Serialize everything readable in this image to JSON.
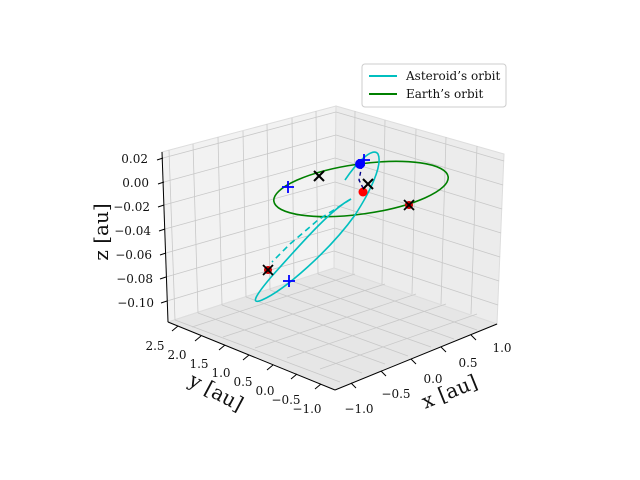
{
  "chart_data": {
    "type": "line",
    "projection": "3d",
    "xlabel": "$x$ [au]",
    "ylabel": "$y$ [au]",
    "zlabel": "$z$ [au]",
    "xlim": [
      -1.15,
      1.15
    ],
    "ylim": [
      -1.2,
      2.6
    ],
    "zlim": [
      -0.115,
      0.025
    ],
    "x_ticks": [
      "−1.0",
      "−0.5",
      "0.0",
      "0.5",
      "1.0"
    ],
    "y_ticks": [
      "−1.0",
      "−0.5",
      "0.0",
      "0.5",
      "1.0",
      "1.5",
      "2.0",
      "2.5"
    ],
    "z_ticks": [
      "0.02",
      "0.00",
      "−0.02",
      "−0.04",
      "−0.06",
      "−0.08",
      "−0.10"
    ],
    "grid": true,
    "legend_position": "top-right",
    "series": [
      {
        "name": "Asteroid’s orbit",
        "color": "#00bfbf",
        "shape": "tilted ellipse, dashed segment behind Earth orbit"
      },
      {
        "name": "Earth’s orbit",
        "color": "#008000",
        "shape": "ellipse in z = 0 plane"
      }
    ],
    "markers": [
      {
        "kind": "cross",
        "color": "#000000",
        "note": "Earth positions"
      },
      {
        "kind": "plus",
        "color": "#0000ff",
        "note": "asteroid nodes / apsides"
      },
      {
        "kind": "dot",
        "color": "#0000ff",
        "note": "asteroid position"
      },
      {
        "kind": "dot",
        "color": "#ff0000",
        "note": "Earth position"
      },
      {
        "kind": "x-on-red",
        "color": "#000000",
        "note": "ascending / descending points"
      }
    ]
  },
  "legend": {
    "asteroid": "Asteroid’s orbit",
    "earth": "Earth’s orbit"
  },
  "axes": {
    "x_label": "x [au]",
    "y_label": "y [au]",
    "z_label": "z [au]"
  }
}
